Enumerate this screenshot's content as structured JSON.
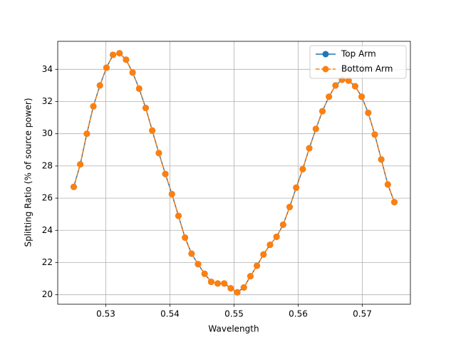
{
  "chart_data": {
    "type": "line",
    "xlabel": "Wavelength",
    "ylabel": "Splitting Ratio (% of source power)",
    "x": [
      0.525,
      0.52602,
      0.52704,
      0.52806,
      0.52908,
      0.5301,
      0.53112,
      0.53214,
      0.53316,
      0.53418,
      0.5352,
      0.53622,
      0.53724,
      0.53827,
      0.53929,
      0.54031,
      0.54133,
      0.54235,
      0.54337,
      0.54439,
      0.54541,
      0.54643,
      0.54745,
      0.54847,
      0.54949,
      0.55051,
      0.55153,
      0.55255,
      0.55357,
      0.55459,
      0.55561,
      0.55663,
      0.55765,
      0.55867,
      0.55969,
      0.56071,
      0.56173,
      0.56276,
      0.56378,
      0.5648,
      0.56582,
      0.56684,
      0.56786,
      0.56888,
      0.5699,
      0.57092,
      0.57194,
      0.57296,
      0.57398,
      0.575
    ],
    "series": [
      {
        "name": "Top Arm",
        "color": "#1f77b4",
        "dash": false,
        "values": [
          26.7,
          28.1,
          30.0,
          31.7,
          33.0,
          34.1,
          34.9,
          35.0,
          34.6,
          33.8,
          32.8,
          31.6,
          30.2,
          28.8,
          27.5,
          26.25,
          24.9,
          23.55,
          22.55,
          21.9,
          21.3,
          20.8,
          20.7,
          20.7,
          20.4,
          20.15,
          20.45,
          21.15,
          21.8,
          22.5,
          23.1,
          23.6,
          24.35,
          25.45,
          26.65,
          27.8,
          29.1,
          30.3,
          31.4,
          32.3,
          33.0,
          33.35,
          33.3,
          32.95,
          32.3,
          31.3,
          29.95,
          28.4,
          26.85,
          25.75
        ]
      },
      {
        "name": "Bottom Arm",
        "color": "#ff7f0e",
        "dash": true,
        "values": [
          26.7,
          28.1,
          30.0,
          31.7,
          33.0,
          34.1,
          34.9,
          35.0,
          34.6,
          33.8,
          32.8,
          31.6,
          30.2,
          28.8,
          27.5,
          26.25,
          24.9,
          23.55,
          22.55,
          21.9,
          21.3,
          20.8,
          20.7,
          20.7,
          20.4,
          20.15,
          20.45,
          21.15,
          21.8,
          22.5,
          23.1,
          23.6,
          24.35,
          25.45,
          26.65,
          27.8,
          29.1,
          30.3,
          31.4,
          32.3,
          33.0,
          33.35,
          33.3,
          32.95,
          32.3,
          31.3,
          29.95,
          28.4,
          26.85,
          25.75
        ]
      }
    ],
    "xlim": [
      0.5225,
      0.5775
    ],
    "ylim": [
      19.41,
      35.74
    ],
    "xticks": [
      0.53,
      0.54,
      0.55,
      0.56,
      0.57
    ],
    "yticks": [
      20,
      22,
      24,
      26,
      28,
      30,
      32,
      34
    ],
    "grid": true,
    "legend": "upper right"
  }
}
